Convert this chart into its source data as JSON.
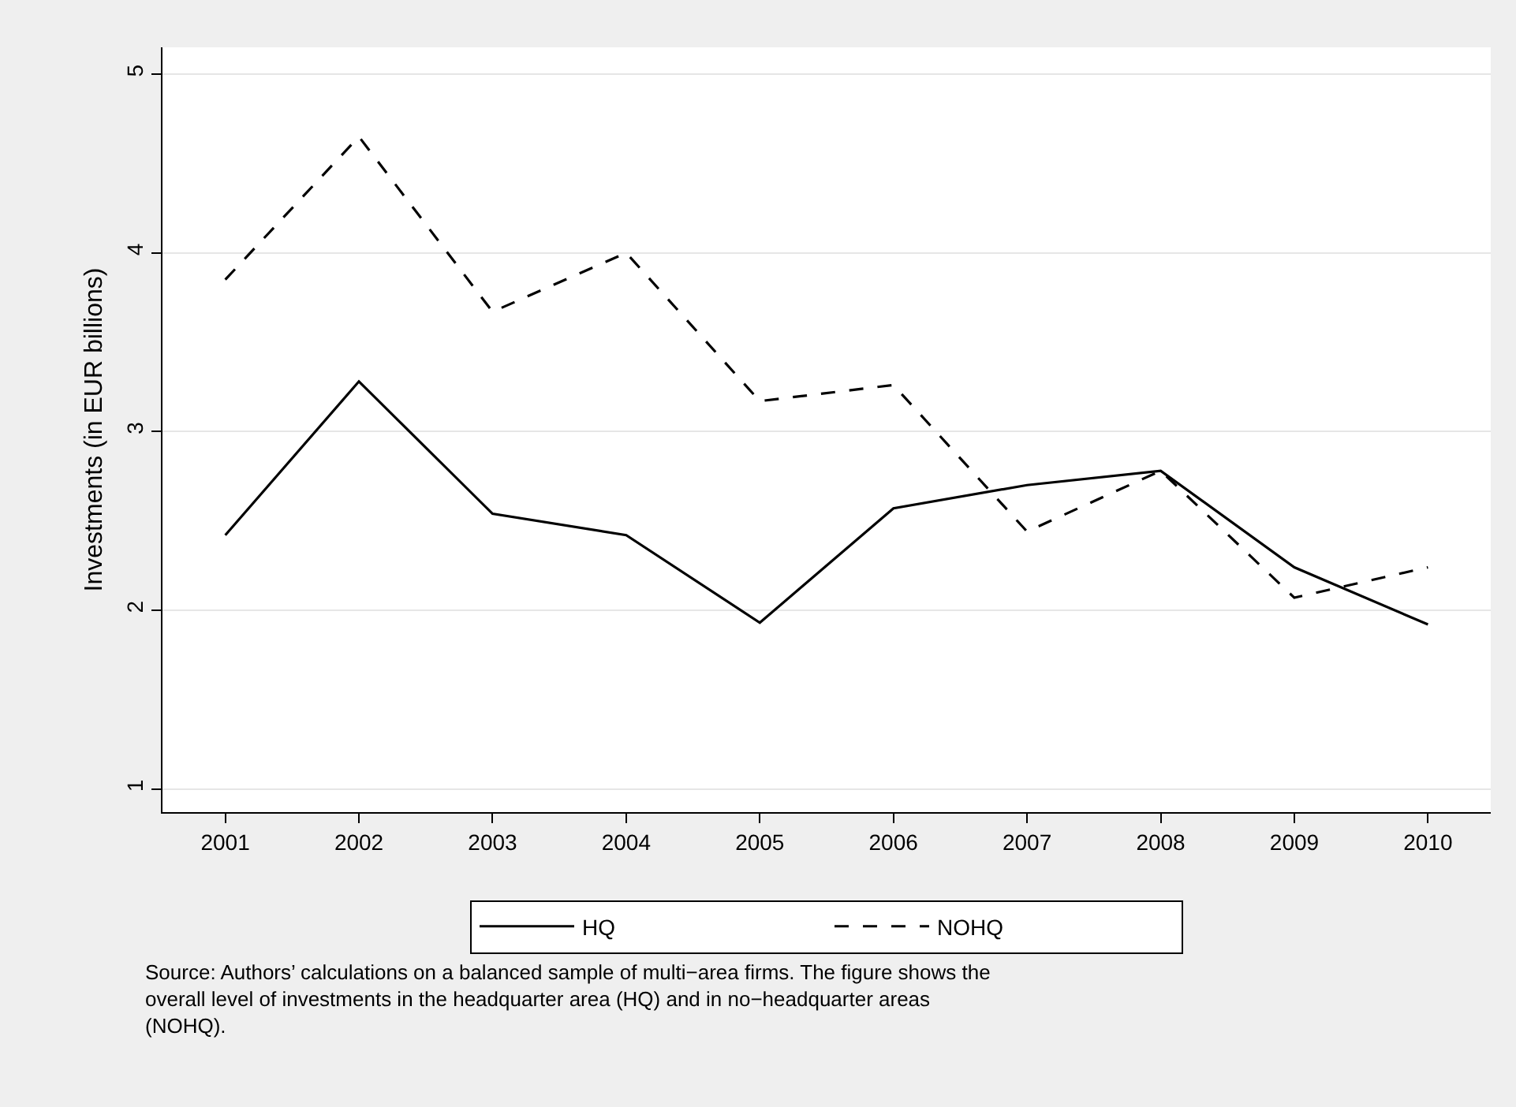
{
  "chart_data": {
    "type": "line",
    "ylabel": "Investments (in EUR billions)",
    "categories": [
      "2001",
      "2002",
      "2003",
      "2004",
      "2005",
      "2006",
      "2007",
      "2008",
      "2009",
      "2010"
    ],
    "series": [
      {
        "name": "HQ",
        "color": "#000000",
        "line_style": "solid",
        "values": [
          2.42,
          3.28,
          2.54,
          2.42,
          1.93,
          2.57,
          2.7,
          2.78,
          2.24,
          1.92
        ]
      },
      {
        "name": "NOHQ",
        "color": "#000000",
        "line_style": "dashed",
        "values": [
          3.85,
          4.65,
          3.67,
          4.0,
          3.17,
          3.26,
          2.44,
          2.78,
          2.07,
          2.24
        ]
      }
    ],
    "ylim": [
      0.87,
      5.15
    ],
    "yticks": [
      1,
      2,
      3,
      4,
      5
    ],
    "grid": "y",
    "legend": "bottom",
    "marker": "none",
    "annotations": [
      "Source: Authors’ calculations on a balanced sample of multi−area firms. The figure shows the overall level of investments in the headquarter area (HQ) and in no−headquarter areas (NOHQ)."
    ]
  }
}
